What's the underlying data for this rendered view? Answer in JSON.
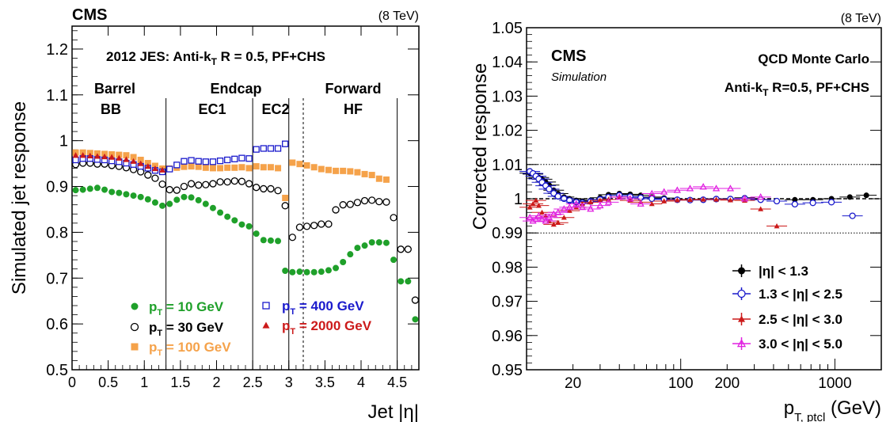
{
  "chart_data": [
    {
      "type": "scatter",
      "experiment_label": "CMS",
      "energy_label": "(8 TeV)",
      "title": "2012 JES: Anti-k_T R = 0.5, PF+CHS",
      "xlabel": "Jet |η|",
      "ylabel": "Simulated jet response",
      "xlim": [
        0,
        4.8
      ],
      "ylim": [
        0.5,
        1.25
      ],
      "x_ticks": [
        "0",
        "0.5",
        "1",
        "1.5",
        "2",
        "2.5",
        "3",
        "3.5",
        "4",
        "4.5"
      ],
      "y_ticks": [
        "0.5",
        "0.6",
        "0.7",
        "0.8",
        "0.9",
        "1",
        "1.1",
        "1.2"
      ],
      "regions": [
        {
          "top": "Barrel",
          "bottom": "BB"
        },
        {
          "top": "Endcap",
          "bottom": "EC1"
        },
        {
          "top": "",
          "bottom": "EC2"
        },
        {
          "top": "Forward",
          "bottom": "HF"
        }
      ],
      "boundaries": [
        1.3,
        2.5,
        3.0,
        4.5
      ],
      "dashed_boundary": 3.2,
      "series": [
        {
          "name": "p_T = 10 GeV",
          "color": "#1fa02a",
          "marker": "filled-circle",
          "x": [
            0.05,
            0.15,
            0.25,
            0.35,
            0.45,
            0.55,
            0.65,
            0.75,
            0.85,
            0.95,
            1.05,
            1.15,
            1.25,
            1.35,
            1.45,
            1.55,
            1.65,
            1.75,
            1.85,
            1.95,
            2.05,
            2.15,
            2.25,
            2.35,
            2.45,
            2.55,
            2.65,
            2.75,
            2.85,
            2.95,
            3.05,
            3.15,
            3.25,
            3.35,
            3.45,
            3.55,
            3.65,
            3.75,
            3.85,
            3.95,
            4.05,
            4.15,
            4.25,
            4.35,
            4.45,
            4.55,
            4.65,
            4.75
          ],
          "y": [
            0.892,
            0.893,
            0.895,
            0.897,
            0.893,
            0.888,
            0.886,
            0.883,
            0.88,
            0.877,
            0.872,
            0.865,
            0.858,
            0.862,
            0.871,
            0.877,
            0.876,
            0.87,
            0.862,
            0.853,
            0.843,
            0.834,
            0.826,
            0.817,
            0.813,
            0.797,
            0.783,
            0.782,
            0.781,
            0.716,
            0.713,
            0.714,
            0.713,
            0.713,
            0.714,
            0.717,
            0.722,
            0.735,
            0.752,
            0.766,
            0.771,
            0.778,
            0.778,
            0.777,
            0.74,
            0.693,
            0.693,
            0.61
          ]
        },
        {
          "name": "p_T = 30 GeV",
          "color": "#000000",
          "marker": "open-circle",
          "x": [
            0.05,
            0.15,
            0.25,
            0.35,
            0.45,
            0.55,
            0.65,
            0.75,
            0.85,
            0.95,
            1.05,
            1.15,
            1.25,
            1.35,
            1.45,
            1.55,
            1.65,
            1.75,
            1.85,
            1.95,
            2.05,
            2.15,
            2.25,
            2.35,
            2.45,
            2.55,
            2.65,
            2.75,
            2.85,
            2.95,
            3.05,
            3.15,
            3.25,
            3.35,
            3.45,
            3.55,
            3.65,
            3.75,
            3.85,
            3.95,
            4.05,
            4.15,
            4.25,
            4.35,
            4.45,
            4.55,
            4.65,
            4.75
          ],
          "y": [
            0.948,
            0.951,
            0.951,
            0.949,
            0.949,
            0.946,
            0.944,
            0.941,
            0.937,
            0.932,
            0.925,
            0.918,
            0.905,
            0.893,
            0.892,
            0.9,
            0.906,
            0.903,
            0.904,
            0.906,
            0.91,
            0.91,
            0.912,
            0.911,
            0.906,
            0.898,
            0.895,
            0.895,
            0.891,
            0.858,
            0.789,
            0.811,
            0.813,
            0.815,
            0.818,
            0.818,
            0.849,
            0.86,
            0.861,
            0.865,
            0.869,
            0.87,
            0.867,
            0.866,
            0.832,
            0.763,
            0.763,
            0.652
          ]
        },
        {
          "name": "p_T = 100 GeV",
          "color": "#f5a24a",
          "marker": "filled-square",
          "x": [
            0.05,
            0.15,
            0.25,
            0.35,
            0.45,
            0.55,
            0.65,
            0.75,
            0.85,
            0.95,
            1.05,
            1.15,
            1.25,
            1.35,
            1.45,
            1.55,
            1.65,
            1.75,
            1.85,
            1.95,
            2.05,
            2.15,
            2.25,
            2.35,
            2.45,
            2.55,
            2.65,
            2.75,
            2.85,
            2.95,
            3.05,
            3.15,
            3.25,
            3.35,
            3.45,
            3.55,
            3.65,
            3.75,
            3.85,
            3.95,
            4.05,
            4.15,
            4.25,
            4.35
          ],
          "y": [
            0.974,
            0.974,
            0.973,
            0.972,
            0.971,
            0.97,
            0.969,
            0.968,
            0.964,
            0.958,
            0.951,
            0.945,
            0.939,
            0.939,
            0.941,
            0.943,
            0.944,
            0.943,
            0.941,
            0.94,
            0.94,
            0.941,
            0.941,
            0.942,
            0.94,
            0.944,
            0.942,
            0.942,
            0.94,
            0.875,
            0.952,
            0.949,
            0.946,
            0.942,
            0.938,
            0.936,
            0.934,
            0.934,
            0.933,
            0.931,
            0.927,
            0.925,
            0.917,
            0.915
          ]
        },
        {
          "name": "p_T = 400 GeV",
          "color": "#1a1acc",
          "marker": "open-square",
          "x": [
            0.05,
            0.15,
            0.25,
            0.35,
            0.45,
            0.55,
            0.65,
            0.75,
            0.85,
            0.95,
            1.05,
            1.15,
            1.25,
            1.35,
            1.45,
            1.55,
            1.65,
            1.75,
            1.85,
            1.95,
            2.05,
            2.15,
            2.25,
            2.35,
            2.45,
            2.55,
            2.65,
            2.75,
            2.85,
            2.95
          ],
          "y": [
            0.958,
            0.961,
            0.961,
            0.959,
            0.958,
            0.956,
            0.954,
            0.951,
            0.948,
            0.944,
            0.94,
            0.935,
            0.932,
            0.938,
            0.947,
            0.955,
            0.957,
            0.955,
            0.954,
            0.954,
            0.956,
            0.958,
            0.96,
            0.962,
            0.961,
            0.981,
            0.983,
            0.983,
            0.983,
            0.993
          ]
        },
        {
          "name": "p_T = 2000 GeV",
          "color": "#cc1a1a",
          "marker": "filled-triangle",
          "x": [
            0.05,
            0.15,
            0.25,
            0.35,
            0.45,
            0.55,
            0.65,
            0.75,
            0.85,
            0.95,
            1.05,
            1.15,
            1.25
          ],
          "y": [
            0.968,
            0.968,
            0.967,
            0.966,
            0.965,
            0.964,
            0.962,
            0.959,
            0.955,
            0.95,
            0.944,
            0.939,
            0.936
          ]
        }
      ]
    },
    {
      "type": "scatter",
      "energy_label": "(8 TeV)",
      "experiment_label": "CMS",
      "sub_label": "Simulation",
      "right_label_1": "QCD Monte Carlo",
      "right_label_2": "Anti-k_T R=0.5, PF+CHS",
      "xlabel": "p_T, ptcl (GeV)",
      "ylabel": "Corrected response",
      "x_scale": "log",
      "xlim": [
        10,
        2000
      ],
      "ylim": [
        0.95,
        1.05
      ],
      "x_ticks": [
        {
          "value": 20,
          "label": "20"
        },
        {
          "value": 100,
          "label": "100"
        },
        {
          "value": 200,
          "label": "200"
        },
        {
          "value": 1000,
          "label": "1000"
        }
      ],
      "y_ticks": [
        "0.95",
        "0.96",
        "0.97",
        "0.98",
        "0.99",
        "1",
        "1.01",
        "1.02",
        "1.03",
        "1.04",
        "1.05"
      ],
      "reference_lines": [
        1.0,
        0.99,
        1.01
      ],
      "series": [
        {
          "name": "|η| < 1.3",
          "color": "#000000",
          "marker": "filled-circle",
          "x": [
            10.5,
            11,
            11.5,
            12,
            12.6,
            13.3,
            14,
            15,
            16,
            17.5,
            19,
            21,
            23,
            26,
            30,
            34,
            40,
            47,
            55,
            65,
            78,
            95,
            115,
            140,
            170,
            210,
            260,
            330,
            420,
            550,
            720,
            950,
            1250,
            1600
          ],
          "y": [
            1.0075,
            1.0072,
            1.0066,
            1.0062,
            1.0057,
            1.0049,
            1.004,
            1.0025,
            1.0015,
            1.0005,
            1.0,
            0.9995,
            0.9993,
            0.9995,
            1.0003,
            1.0012,
            1.0015,
            1.0013,
            1.001,
            1.0005,
            1.0002,
            0.9998,
            0.9997,
            0.9998,
            1.0,
            1.0,
            1.0003,
            0.9998,
            0.9993,
            0.9997,
            0.9997,
            1.0,
            1.0005,
            1.001
          ]
        },
        {
          "name": "1.3 < |η| < 2.5",
          "color": "#1a1acc",
          "marker": "open-circle",
          "x": [
            10.5,
            11,
            11.5,
            12,
            12.6,
            13.3,
            14,
            15,
            16,
            17.5,
            19,
            21,
            23,
            26,
            30,
            34,
            40,
            47,
            55,
            65,
            78,
            95,
            115,
            140,
            170,
            210,
            260,
            330,
            420,
            550,
            720,
            950,
            1300
          ],
          "y": [
            1.008,
            1.0074,
            1.0066,
            1.0058,
            1.0048,
            1.0038,
            1.0028,
            1.0016,
            1.0007,
            1.0,
            0.9995,
            0.999,
            0.9988,
            0.9992,
            0.9998,
            1.0005,
            1.001,
            1.0006,
            1.0003,
            1.0,
            0.9998,
            0.9997,
            0.9996,
            0.9997,
            0.9999,
            0.9999,
            1.0001,
            0.9997,
            0.9993,
            0.9984,
            0.9988,
            0.999,
            0.995
          ]
        },
        {
          "name": "2.5 < |η| < 3.0",
          "color": "#cc1a1a",
          "marker": "filled-triangle",
          "x": [
            10.5,
            11,
            11.5,
            12,
            12.6,
            13.3,
            14,
            15,
            16,
            17.5,
            19,
            21,
            23,
            26,
            30,
            34,
            40,
            47,
            55,
            65,
            78,
            95,
            115,
            140,
            170,
            210,
            260,
            330,
            420
          ],
          "y": [
            0.9975,
            0.9985,
            0.9995,
            0.998,
            0.996,
            0.995,
            0.9935,
            0.9925,
            0.993,
            0.9945,
            0.9965,
            0.9975,
            0.9985,
            0.999,
            0.9995,
            0.9998,
            1.0005,
            0.9995,
            0.999,
            0.9985,
            0.9993,
            0.9996,
            0.9997,
            0.9998,
            0.9998,
            0.9996,
            0.9995,
            0.997,
            0.992
          ]
        },
        {
          "name": "3.0 < |η| < 5.0",
          "color": "#e020e0",
          "marker": "open-triangle",
          "x": [
            10.5,
            11,
            11.5,
            12,
            12.6,
            13.3,
            14,
            15,
            16,
            17.5,
            19,
            21,
            23,
            26,
            30,
            34,
            40,
            47,
            55,
            65,
            78,
            95,
            115,
            140,
            170,
            210,
            260,
            330
          ],
          "y": [
            0.9945,
            0.9935,
            0.994,
            0.995,
            0.994,
            0.9935,
            0.9945,
            0.9955,
            0.996,
            0.997,
            0.9975,
            0.9985,
            0.9975,
            0.997,
            0.998,
            0.999,
            1.0005,
            1.0,
            0.9985,
            1.0015,
            1.002,
            1.0025,
            1.003,
            1.0035,
            1.003,
            1.003,
            1.0,
            1.0005
          ]
        }
      ],
      "legend": [
        {
          "label": "|η| < 1.3",
          "color": "#000000",
          "marker": "filled-circle"
        },
        {
          "label": "1.3 < |η| < 2.5",
          "color": "#1a1acc",
          "marker": "open-circle"
        },
        {
          "label": "2.5 < |η| < 3.0",
          "color": "#cc1a1a",
          "marker": "filled-triangle"
        },
        {
          "label": "3.0 < |η| < 5.0",
          "color": "#e020e0",
          "marker": "open-triangle"
        }
      ]
    }
  ]
}
